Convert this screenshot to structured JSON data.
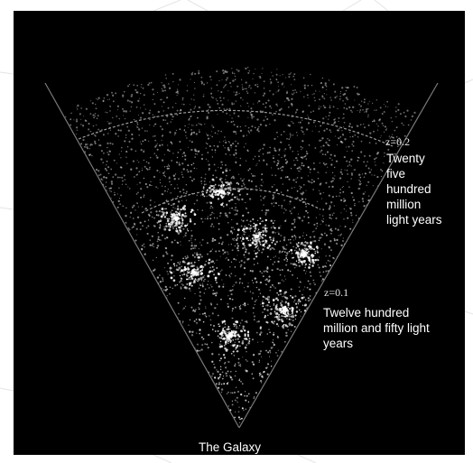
{
  "labels": {
    "z_far": "z=0.2",
    "far_distance": "Twenty\nfive\nhundred\nmillion\nlight years",
    "z_near": "z=0.1",
    "near_distance": "Twelve hundred\nmillion and fifty light\nyears",
    "origin": "The Galaxy"
  },
  "colors": {
    "background": "#000000",
    "galaxies": "#ffffff",
    "text": "#ffffff"
  }
}
